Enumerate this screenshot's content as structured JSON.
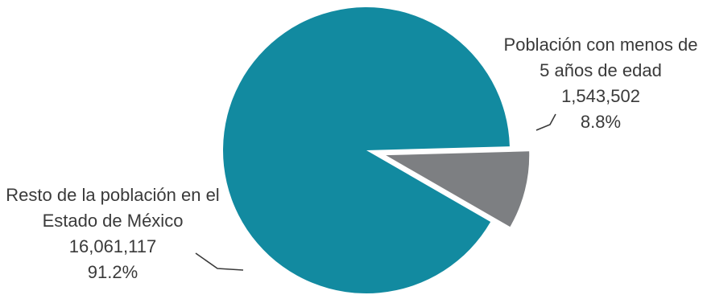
{
  "chart_data": {
    "type": "pie",
    "title": "",
    "slices": [
      {
        "label_lines": [
          "Población con menos de",
          "5 años de edad"
        ],
        "value": 1543502,
        "value_text": "1,543,502",
        "percent": 8.8,
        "percent_text": "8.8%",
        "color": "#7d7f82",
        "exploded": true
      },
      {
        "label_lines": [
          "Resto de la población en el",
          "Estado de México"
        ],
        "value": 16061117,
        "value_text": "16,061,117",
        "percent": 91.2,
        "percent_text": "91.2%",
        "color": "#128aa0",
        "exploded": false
      }
    ]
  }
}
